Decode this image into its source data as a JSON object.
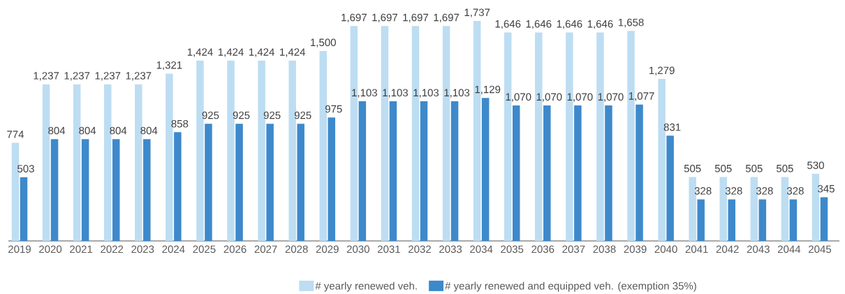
{
  "chart_data": {
    "type": "bar",
    "categories": [
      "2019",
      "2020",
      "2021",
      "2022",
      "2023",
      "2024",
      "2025",
      "2026",
      "2027",
      "2028",
      "2029",
      "2030",
      "2031",
      "2032",
      "2033",
      "2034",
      "2035",
      "2036",
      "2037",
      "2038",
      "2039",
      "2040",
      "2041",
      "2042",
      "2043",
      "2044",
      "2045"
    ],
    "series": [
      {
        "name": "# yearly renewed veh.",
        "color": "#bdddf2",
        "values": [
          774,
          1237,
          1237,
          1237,
          1237,
          1321,
          1424,
          1424,
          1424,
          1424,
          1500,
          1697,
          1697,
          1697,
          1697,
          1737,
          1646,
          1646,
          1646,
          1646,
          1658,
          1279,
          505,
          505,
          505,
          505,
          530
        ],
        "value_labels": [
          "774",
          "1,237",
          "1,237",
          "1,237",
          "1,237",
          "1,321",
          "1,424",
          "1,424",
          "1,424",
          "1,424",
          "1,500",
          "1,697",
          "1,697",
          "1,697",
          "1,697",
          "1,737",
          "1,646",
          "1,646",
          "1,646",
          "1,646",
          "1,658",
          "1,279",
          "505",
          "505",
          "505",
          "505",
          "530"
        ]
      },
      {
        "name": "# yearly renewed and equipped veh. (exemption 35%)",
        "color": "#3d89cb",
        "values": [
          503,
          804,
          804,
          804,
          804,
          858,
          925,
          925,
          925,
          925,
          975,
          1103,
          1103,
          1103,
          1103,
          1129,
          1070,
          1070,
          1070,
          1070,
          1077,
          831,
          328,
          328,
          328,
          328,
          345
        ],
        "value_labels": [
          "503",
          "804",
          "804",
          "804",
          "804",
          "858",
          "925",
          "925",
          "925",
          "925",
          "975",
          "1,103",
          "1,103",
          "1,103",
          "1,103",
          "1,129",
          "1,070",
          "1,070",
          "1,070",
          "1,070",
          "1,077",
          "831",
          "328",
          "328",
          "328",
          "328",
          "345"
        ]
      }
    ],
    "tick_labels": "x",
    "legend": "bottom"
  }
}
